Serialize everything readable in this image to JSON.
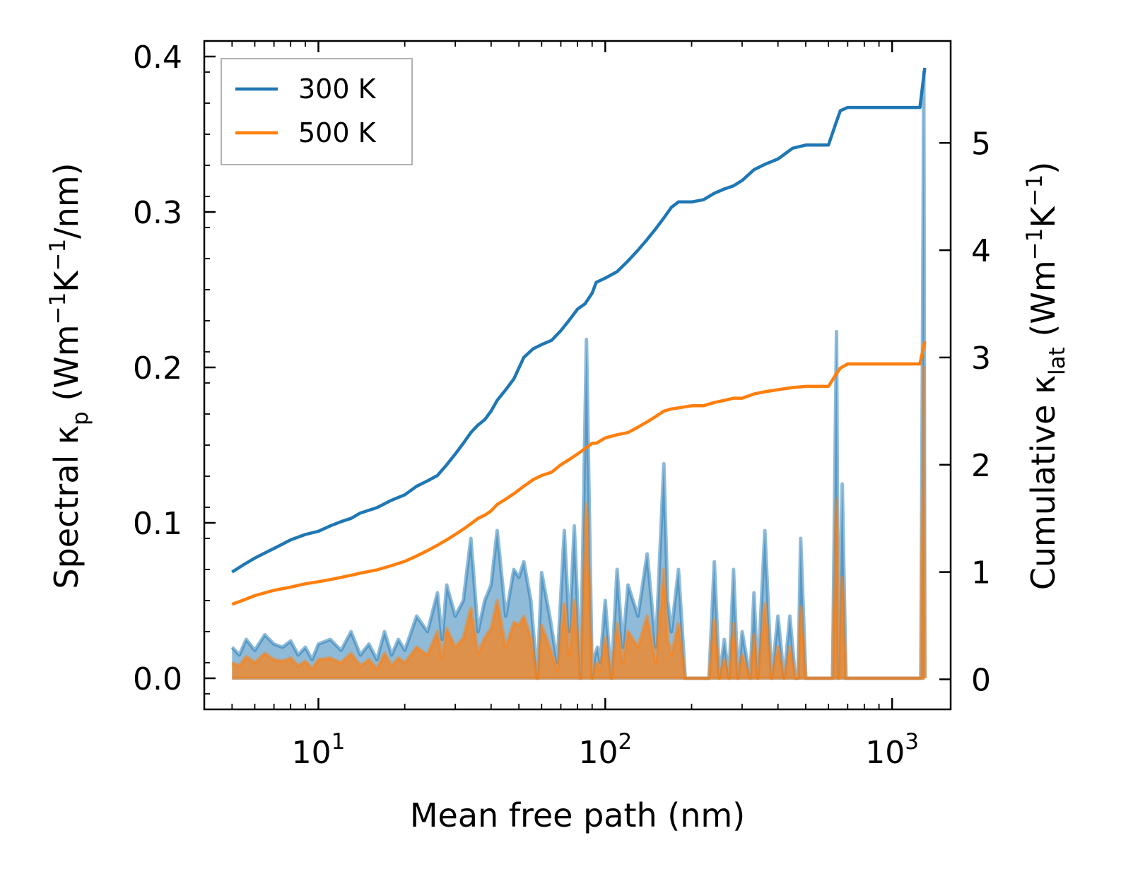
{
  "chart_data": {
    "type": "line",
    "xlabel": "Mean free path (nm)",
    "x_scale": "log",
    "xlim": [
      4,
      1600
    ],
    "x_ticks": [
      {
        "value": 10,
        "base": "10",
        "exp": "1"
      },
      {
        "value": 100,
        "base": "10",
        "exp": "2"
      },
      {
        "value": 1000,
        "base": "10",
        "exp": "3"
      }
    ],
    "left_axis": {
      "label_main": "Spectral κ",
      "label_sub": "p",
      "label_rest_1": " (Wm",
      "label_sup_1": "−1",
      "label_rest_2": "K",
      "label_sup_2": "−1",
      "label_rest_3": "/nm)",
      "ylim": [
        -0.02,
        0.41
      ],
      "ticks": [
        {
          "value": 0.0,
          "label": "0.0"
        },
        {
          "value": 0.1,
          "label": "0.1"
        },
        {
          "value": 0.2,
          "label": "0.2"
        },
        {
          "value": 0.3,
          "label": "0.3"
        },
        {
          "value": 0.4,
          "label": "0.4"
        }
      ]
    },
    "right_axis": {
      "label_main": "Cumulative κ",
      "label_sub": "lat",
      "label_rest_1": " (Wm",
      "label_sup_1": "−1",
      "label_rest_2": "K",
      "label_sup_2": "−1",
      "label_rest_3": ")",
      "ylim": [
        -0.28,
        5.95
      ],
      "ticks": [
        {
          "value": 0,
          "label": "0"
        },
        {
          "value": 1,
          "label": "1"
        },
        {
          "value": 2,
          "label": "2"
        },
        {
          "value": 3,
          "label": "3"
        },
        {
          "value": 4,
          "label": "4"
        },
        {
          "value": 5,
          "label": "5"
        }
      ]
    },
    "legend": {
      "position": "upper-left",
      "entries": [
        {
          "label": "300 K",
          "color": "#1f77b4"
        },
        {
          "label": "500 K",
          "color": "#ff7f0e"
        }
      ]
    },
    "series": [
      {
        "name": "300 K",
        "color": "#1f77b4",
        "cumulative": {
          "x": [
            5.0,
            5.5,
            6.0,
            7.0,
            8.0,
            9.0,
            10.0,
            11.0,
            12.0,
            13.0,
            14.0,
            16.0,
            18.0,
            20.0,
            22.0,
            24.0,
            26.0,
            28.0,
            30.0,
            32.0,
            34.0,
            36.0,
            38.0,
            40.0,
            42.0,
            45.0,
            48.0,
            52.0,
            56.0,
            60.0,
            65.0,
            70.0,
            75.0,
            80.0,
            85.0,
            90.0,
            93.0,
            100.0,
            110.0,
            120.0,
            130.0,
            140.0,
            150.0,
            160.0,
            170.0,
            180.0,
            200.0,
            220.0,
            240.0,
            260.0,
            280.0,
            300.0,
            330.0,
            360.0,
            400.0,
            450.0,
            500.0,
            550.0,
            600.0,
            640.0,
            660.0,
            700.0,
            800.0,
            1000.0,
            1250.0,
            1300.0
          ],
          "y": [
            1.0,
            1.07,
            1.13,
            1.22,
            1.3,
            1.35,
            1.38,
            1.43,
            1.47,
            1.5,
            1.55,
            1.6,
            1.67,
            1.72,
            1.8,
            1.85,
            1.9,
            2.0,
            2.1,
            2.2,
            2.3,
            2.37,
            2.42,
            2.5,
            2.6,
            2.7,
            2.8,
            3.0,
            3.08,
            3.12,
            3.16,
            3.25,
            3.35,
            3.45,
            3.5,
            3.6,
            3.7,
            3.74,
            3.8,
            3.9,
            4.0,
            4.1,
            4.2,
            4.3,
            4.4,
            4.45,
            4.45,
            4.47,
            4.53,
            4.57,
            4.6,
            4.65,
            4.75,
            4.8,
            4.85,
            4.95,
            4.98,
            4.98,
            4.98,
            5.2,
            5.3,
            5.33,
            5.33,
            5.33,
            5.33,
            5.7
          ]
        },
        "spectral": {
          "x": [
            5.0,
            5.3,
            5.6,
            6.0,
            6.5,
            7.0,
            7.5,
            8.0,
            8.5,
            9.0,
            9.5,
            10.0,
            11.0,
            12.0,
            13.0,
            14.0,
            15.0,
            16.0,
            17.0,
            18.0,
            19.0,
            20.0,
            22.0,
            24.0,
            26.0,
            27.0,
            28.0,
            30.0,
            32.0,
            34.0,
            36.0,
            38.0,
            40.0,
            42.0,
            45.0,
            48.0,
            50.0,
            52.0,
            55.0,
            58.0,
            60.0,
            64.0,
            68.0,
            72.0,
            75.0,
            78.0,
            82.0,
            86.0,
            90.0,
            92.0,
            94.0,
            96.0,
            100.0,
            105.0,
            110.0,
            115.0,
            120.0,
            130.0,
            140.0,
            150.0,
            160.0,
            165.0,
            170.0,
            180.0,
            190.0,
            200.0,
            220.0,
            230.0,
            240.0,
            250.0,
            260.0,
            270.0,
            280.0,
            290.0,
            300.0,
            320.0,
            330.0,
            340.0,
            360.0,
            380.0,
            400.0,
            420.0,
            440.0,
            460.0,
            470.0,
            480.0,
            500.0,
            560.0,
            600.0,
            620.0,
            640.0,
            650.0,
            670.0,
            690.0,
            710.0,
            750.0,
            800.0,
            1000.0,
            1200.0,
            1260.0,
            1290.0,
            1300.0
          ],
          "y": [
            0.02,
            0.015,
            0.025,
            0.018,
            0.028,
            0.022,
            0.02,
            0.024,
            0.015,
            0.02,
            0.012,
            0.022,
            0.025,
            0.018,
            0.03,
            0.015,
            0.022,
            0.012,
            0.03,
            0.015,
            0.025,
            0.018,
            0.04,
            0.03,
            0.055,
            0.025,
            0.06,
            0.04,
            0.05,
            0.09,
            0.03,
            0.05,
            0.06,
            0.095,
            0.04,
            0.07,
            0.065,
            0.075,
            0.05,
            0.0,
            0.068,
            0.04,
            0.01,
            0.095,
            0.03,
            0.098,
            0.0,
            0.218,
            0.0,
            0.015,
            0.02,
            0.01,
            0.05,
            0.0,
            0.07,
            0.02,
            0.06,
            0.04,
            0.08,
            0.02,
            0.138,
            0.05,
            0.03,
            0.07,
            0.0,
            0.0,
            0.0,
            0.0,
            0.075,
            0.0,
            0.025,
            0.0,
            0.07,
            0.0,
            0.03,
            0.0,
            0.055,
            0.0,
            0.095,
            0.0,
            0.04,
            0.0,
            0.04,
            0.0,
            0.0,
            0.09,
            0.0,
            0.0,
            0.0,
            0.0,
            0.223,
            0.0,
            0.125,
            0.0,
            0.0,
            0.0,
            0.0,
            0.0,
            0.0,
            0.0,
            0.39,
            0.0
          ]
        }
      },
      {
        "name": "500 K",
        "color": "#ff7f0e",
        "cumulative": {
          "x": [
            5.0,
            5.5,
            6.0,
            7.0,
            8.0,
            9.0,
            10.0,
            11.0,
            12.0,
            13.0,
            14.0,
            16.0,
            18.0,
            20.0,
            22.0,
            24.0,
            26.0,
            28.0,
            30.0,
            32.0,
            34.0,
            36.0,
            38.0,
            40.0,
            42.0,
            45.0,
            48.0,
            52.0,
            56.0,
            60.0,
            65.0,
            70.0,
            75.0,
            80.0,
            85.0,
            90.0,
            93.0,
            100.0,
            110.0,
            120.0,
            130.0,
            140.0,
            150.0,
            160.0,
            170.0,
            180.0,
            200.0,
            220.0,
            240.0,
            260.0,
            280.0,
            300.0,
            330.0,
            360.0,
            400.0,
            450.0,
            500.0,
            550.0,
            600.0,
            640.0,
            660.0,
            700.0,
            800.0,
            1000.0,
            1250.0,
            1300.0
          ],
          "y": [
            0.7,
            0.74,
            0.78,
            0.83,
            0.86,
            0.89,
            0.91,
            0.93,
            0.95,
            0.97,
            0.99,
            1.02,
            1.06,
            1.1,
            1.15,
            1.2,
            1.25,
            1.3,
            1.35,
            1.4,
            1.45,
            1.5,
            1.53,
            1.57,
            1.63,
            1.68,
            1.73,
            1.8,
            1.86,
            1.9,
            1.93,
            2.0,
            2.05,
            2.1,
            2.15,
            2.2,
            2.2,
            2.25,
            2.28,
            2.3,
            2.35,
            2.4,
            2.45,
            2.5,
            2.52,
            2.53,
            2.55,
            2.55,
            2.58,
            2.6,
            2.62,
            2.62,
            2.66,
            2.68,
            2.7,
            2.72,
            2.73,
            2.73,
            2.73,
            2.85,
            2.9,
            2.94,
            2.94,
            2.94,
            2.94,
            3.15
          ]
        },
        "spectral": {
          "x": [
            5.0,
            5.3,
            5.6,
            6.0,
            6.5,
            7.0,
            7.5,
            8.0,
            8.5,
            9.0,
            9.5,
            10.0,
            11.0,
            12.0,
            13.0,
            14.0,
            15.0,
            16.0,
            17.0,
            18.0,
            19.0,
            20.0,
            22.0,
            24.0,
            26.0,
            27.0,
            28.0,
            30.0,
            32.0,
            34.0,
            36.0,
            38.0,
            40.0,
            42.0,
            45.0,
            48.0,
            50.0,
            52.0,
            55.0,
            58.0,
            60.0,
            64.0,
            68.0,
            72.0,
            75.0,
            78.0,
            82.0,
            86.0,
            90.0,
            92.0,
            94.0,
            96.0,
            100.0,
            105.0,
            110.0,
            115.0,
            120.0,
            130.0,
            140.0,
            150.0,
            160.0,
            165.0,
            170.0,
            180.0,
            190.0,
            200.0,
            220.0,
            230.0,
            240.0,
            250.0,
            260.0,
            270.0,
            280.0,
            290.0,
            300.0,
            320.0,
            330.0,
            340.0,
            360.0,
            380.0,
            400.0,
            420.0,
            440.0,
            460.0,
            470.0,
            480.0,
            500.0,
            560.0,
            600.0,
            620.0,
            640.0,
            650.0,
            670.0,
            690.0,
            710.0,
            750.0,
            800.0,
            1000.0,
            1200.0,
            1260.0,
            1290.0,
            1300.0
          ],
          "y": [
            0.01,
            0.008,
            0.014,
            0.01,
            0.016,
            0.012,
            0.011,
            0.013,
            0.008,
            0.011,
            0.006,
            0.012,
            0.013,
            0.01,
            0.016,
            0.008,
            0.012,
            0.006,
            0.016,
            0.008,
            0.013,
            0.01,
            0.02,
            0.015,
            0.03,
            0.013,
            0.032,
            0.02,
            0.026,
            0.045,
            0.016,
            0.026,
            0.032,
            0.05,
            0.02,
            0.036,
            0.034,
            0.04,
            0.026,
            0.0,
            0.034,
            0.02,
            0.005,
            0.048,
            0.015,
            0.05,
            0.0,
            0.112,
            0.0,
            0.008,
            0.01,
            0.005,
            0.026,
            0.0,
            0.035,
            0.01,
            0.03,
            0.02,
            0.04,
            0.01,
            0.07,
            0.025,
            0.015,
            0.035,
            0.0,
            0.0,
            0.0,
            0.0,
            0.038,
            0.0,
            0.012,
            0.0,
            0.035,
            0.0,
            0.015,
            0.0,
            0.028,
            0.0,
            0.048,
            0.0,
            0.02,
            0.0,
            0.02,
            0.0,
            0.0,
            0.046,
            0.0,
            0.0,
            0.0,
            0.0,
            0.115,
            0.0,
            0.065,
            0.0,
            0.0,
            0.0,
            0.0,
            0.0,
            0.0,
            0.0,
            0.2,
            0.0
          ]
        }
      }
    ]
  }
}
